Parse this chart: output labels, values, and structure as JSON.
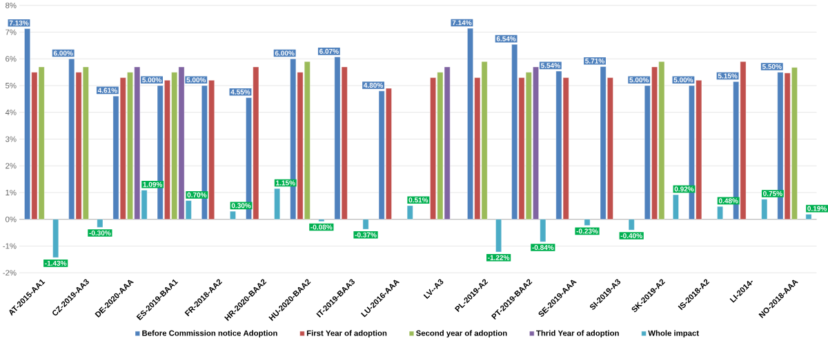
{
  "chart_data": {
    "type": "bar",
    "categories": [
      "AT-2015-AA1",
      "CZ-2019-AA3",
      "DE-2020-AAA",
      "ES-2019-BAA1",
      "FR-2018-AA2",
      "HR-2020-BAA2",
      "HU-2020-BAA2",
      "IT-2019-BAA3",
      "LU-2016-AAA",
      "LV--A3",
      "PL-2019-A2",
      "PT-2019-BAA2",
      "SE-2019-AAA",
      "SI-2019-A3",
      "SK-2019-A2",
      "IS-2018-A2",
      "LI-2014-",
      "NO-2018-AAA"
    ],
    "series": [
      {
        "name": "Before Commission notice Adoption",
        "color": "#4f81bd",
        "values": [
          7.13,
          6.0,
          4.61,
          5.0,
          5.0,
          4.55,
          6.0,
          6.07,
          4.8,
          null,
          7.14,
          6.54,
          5.54,
          5.71,
          5.0,
          5.0,
          5.15,
          5.5
        ],
        "value_labels": [
          "7.13%",
          "6.00%",
          "4.61%",
          "5.00%",
          "5.00%",
          "4.55%",
          "6.00%",
          "6.07%",
          "4.80%",
          null,
          "7.14%",
          "6.54%",
          "5.54%",
          "5.71%",
          "5.00%",
          "5.00%",
          "5.15%",
          "5.50%"
        ]
      },
      {
        "name": "First Year of adoption",
        "color": "#c0504d",
        "values": [
          5.5,
          5.5,
          5.3,
          5.2,
          5.2,
          5.7,
          5.5,
          5.7,
          4.9,
          5.3,
          5.3,
          5.3,
          5.3,
          5.3,
          5.7,
          5.2,
          5.9,
          5.47
        ]
      },
      {
        "name": "Second year of adoption",
        "color": "#9bbb59",
        "values": [
          5.7,
          5.7,
          5.5,
          5.5,
          null,
          null,
          5.9,
          null,
          null,
          5.5,
          5.9,
          5.5,
          null,
          null,
          5.9,
          null,
          null,
          5.68
        ]
      },
      {
        "name": "Thrid Year of adoption",
        "color": "#8064a2",
        "values": [
          null,
          null,
          5.7,
          5.7,
          null,
          null,
          null,
          null,
          null,
          5.7,
          null,
          5.7,
          null,
          null,
          null,
          null,
          null,
          null
        ]
      },
      {
        "name": "Whole impact",
        "color": "#4bacc6",
        "values": [
          -1.43,
          -0.3,
          1.09,
          0.7,
          0.3,
          1.15,
          -0.08,
          -0.37,
          0.51,
          null,
          -1.22,
          -0.84,
          -0.23,
          -0.4,
          0.92,
          0.48,
          0.75,
          0.19
        ],
        "value_labels": [
          "-1.43%",
          "-0.30%",
          "1.09%",
          "0.70%",
          "0.30%",
          "1.15%",
          "-0.08%",
          "-0.37%",
          "0.51%",
          null,
          "-1.22%",
          "-0.84%",
          "-0.23%",
          "-0.40%",
          "0.92%",
          "0.48%",
          "0.75%",
          "0.19%"
        ]
      }
    ],
    "ylim": [
      -2,
      8
    ],
    "yticks": [
      {
        "value": -2,
        "label": "-2%"
      },
      {
        "value": -1,
        "label": "-1%"
      },
      {
        "value": 0,
        "label": "0%"
      },
      {
        "value": 1,
        "label": "1%"
      },
      {
        "value": 2,
        "label": "2%"
      },
      {
        "value": 3,
        "label": "3%"
      },
      {
        "value": 4,
        "label": "4%"
      },
      {
        "value": 5,
        "label": "5%"
      },
      {
        "value": 6,
        "label": "6%"
      },
      {
        "value": 7,
        "label": "7%"
      },
      {
        "value": 8,
        "label": "8%"
      }
    ],
    "grid": "y",
    "legend": "bottom"
  }
}
